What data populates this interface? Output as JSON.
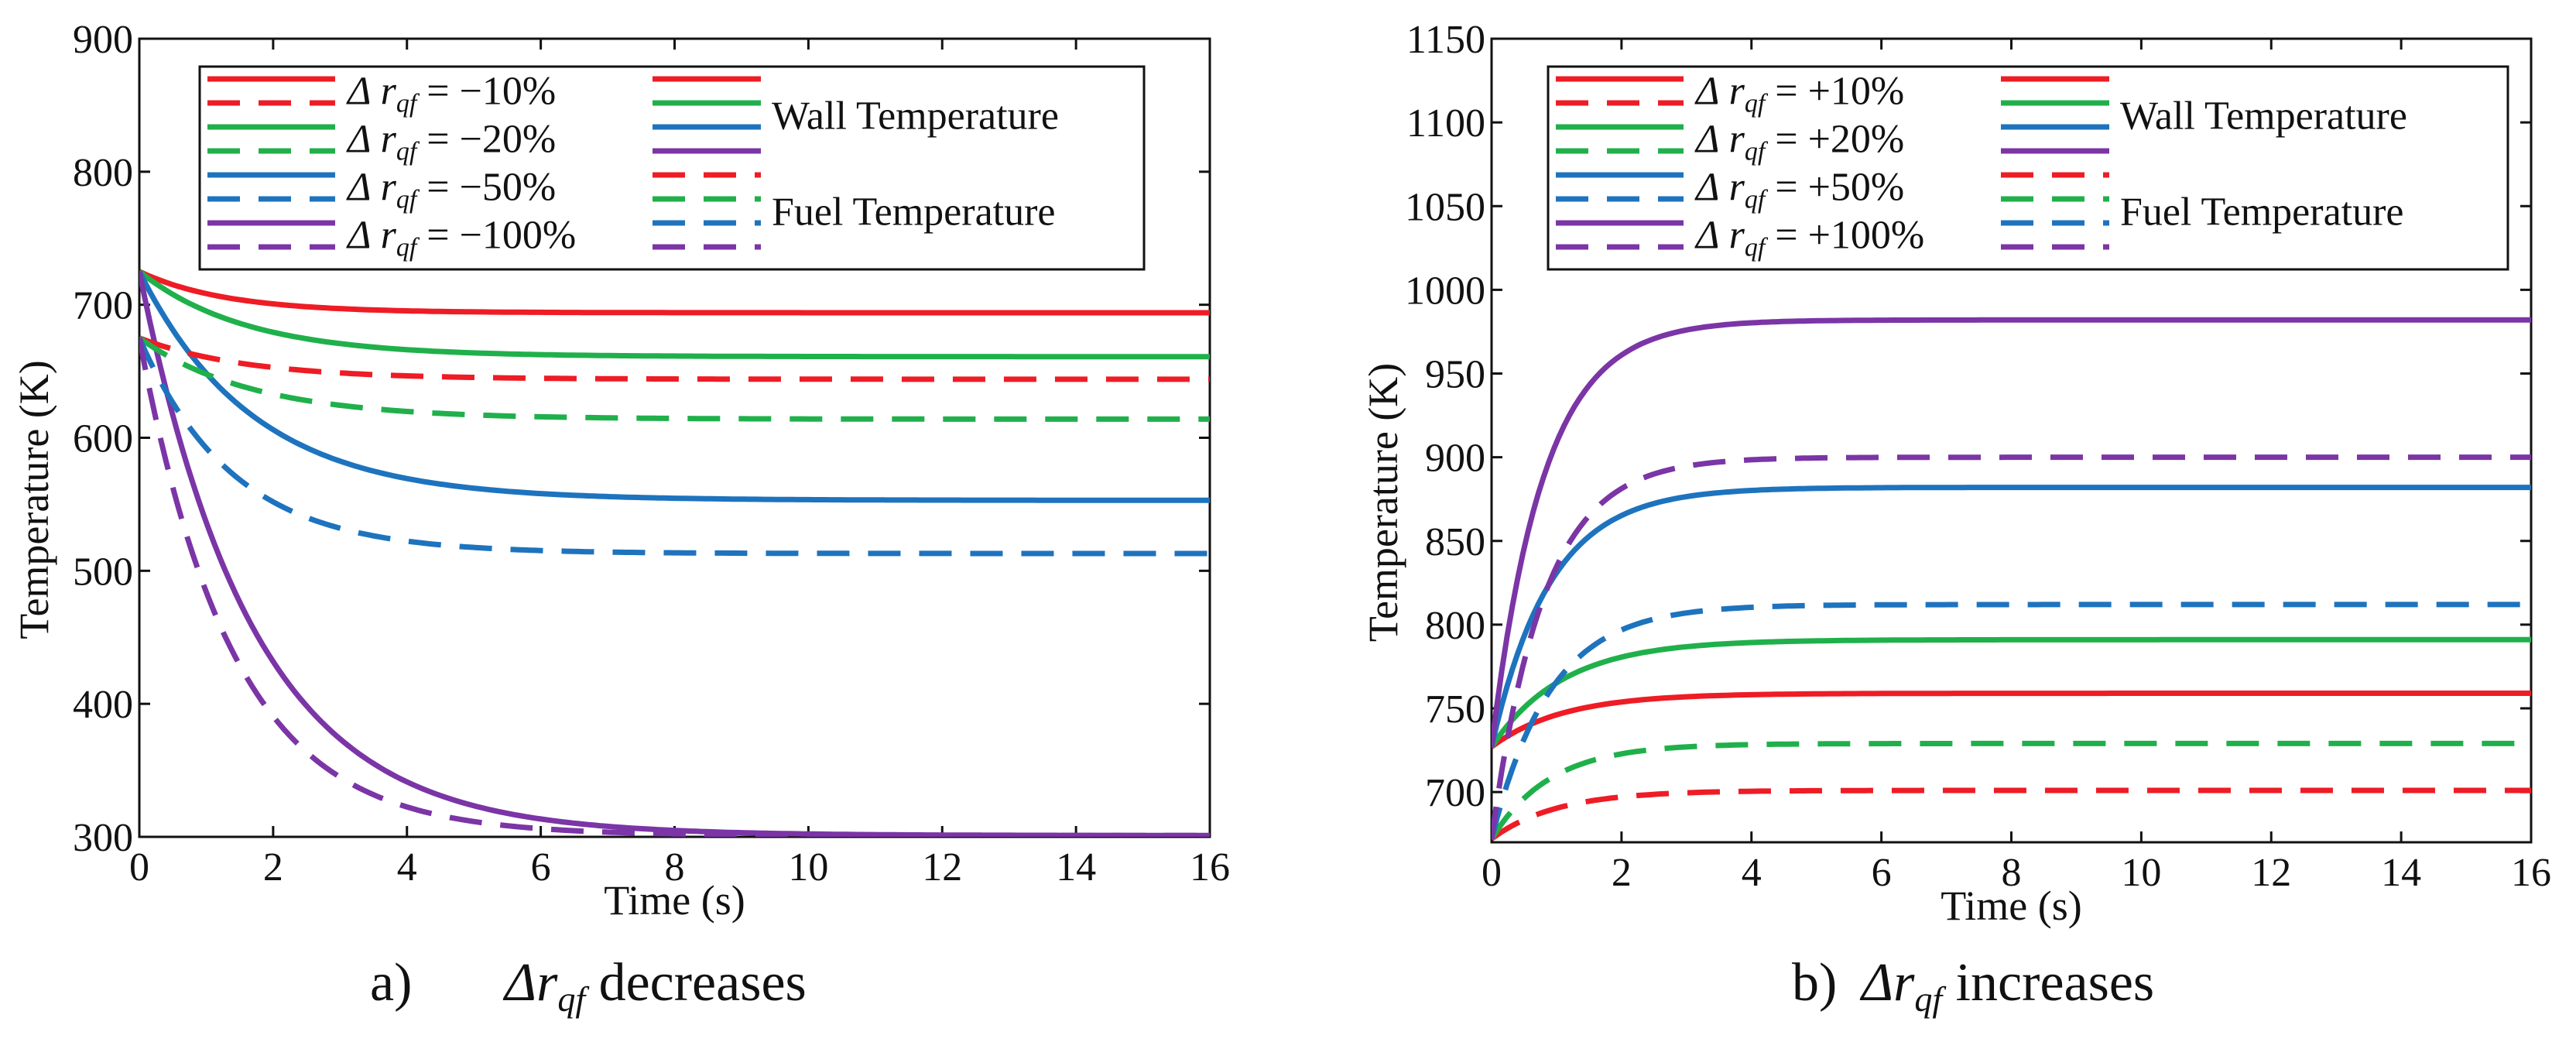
{
  "colors": {
    "red": "#ee1c25",
    "green": "#20b04b",
    "blue": "#1e73be",
    "purple": "#7b35a6"
  },
  "chart_data": [
    {
      "type": "line",
      "caption_letter": "a)",
      "caption_text": "decreases",
      "xlabel": "Time (s)",
      "ylabel": "Temperature (K)",
      "xlim": [
        0,
        16
      ],
      "ylim": [
        300,
        900
      ],
      "xticks": [
        "0",
        "2",
        "4",
        "6",
        "8",
        "10",
        "12",
        "14",
        "16"
      ],
      "yticks": [
        "300",
        "400",
        "500",
        "600",
        "700",
        "800",
        "900"
      ],
      "legend_entries": [
        "−10%",
        "−20%",
        "−50%",
        "−100%"
      ],
      "legend_group_labels": [
        "Wall Temperature",
        "Fuel Temperature"
      ],
      "series": [
        {
          "color": "red",
          "style": "solid",
          "start": 725,
          "end": 694,
          "tau": 1.3
        },
        {
          "color": "green",
          "style": "solid",
          "start": 725,
          "end": 661,
          "tau": 1.6
        },
        {
          "color": "blue",
          "style": "solid",
          "start": 725,
          "end": 553,
          "tau": 1.7
        },
        {
          "color": "purple",
          "style": "solid",
          "start": 725,
          "end": 301,
          "tau": 1.7
        },
        {
          "color": "red",
          "style": "dashed",
          "start": 675,
          "end": 644,
          "tau": 1.6
        },
        {
          "color": "green",
          "style": "dashed",
          "start": 675,
          "end": 614,
          "tau": 1.7
        },
        {
          "color": "blue",
          "style": "dashed",
          "start": 675,
          "end": 513,
          "tau": 1.4
        },
        {
          "color": "purple",
          "style": "dashed",
          "start": 675,
          "end": 301,
          "tau": 1.4
        }
      ]
    },
    {
      "type": "line",
      "caption_letter": "b)",
      "caption_text": "increases",
      "xlabel": "Time (s)",
      "ylabel": "Temperature (K)",
      "xlim": [
        0,
        16
      ],
      "ylim": [
        670,
        1150
      ],
      "xticks": [
        "0",
        "2",
        "4",
        "6",
        "8",
        "10",
        "12",
        "14",
        "16"
      ],
      "yticks": [
        "700",
        "750",
        "800",
        "850",
        "900",
        "950",
        "1000",
        "1050",
        "1100",
        "1150"
      ],
      "legend_entries": [
        "+10%",
        "+20%",
        "+50%",
        "+100%"
      ],
      "legend_group_labels": [
        "Wall Temperature",
        "Fuel Temperature"
      ],
      "series": [
        {
          "color": "red",
          "style": "solid",
          "start": 727,
          "end": 759,
          "tau": 1.1
        },
        {
          "color": "green",
          "style": "solid",
          "start": 727,
          "end": 791,
          "tau": 1.1
        },
        {
          "color": "blue",
          "style": "solid",
          "start": 727,
          "end": 882,
          "tau": 0.9
        },
        {
          "color": "purple",
          "style": "solid",
          "start": 727,
          "end": 982,
          "tau": 0.8
        },
        {
          "color": "red",
          "style": "dashed",
          "start": 672,
          "end": 701,
          "tau": 1.0
        },
        {
          "color": "green",
          "style": "dashed",
          "start": 672,
          "end": 729,
          "tau": 0.9
        },
        {
          "color": "blue",
          "style": "dashed",
          "start": 672,
          "end": 812,
          "tau": 0.9
        },
        {
          "color": "purple",
          "style": "dashed",
          "start": 672,
          "end": 900,
          "tau": 0.8
        }
      ]
    }
  ],
  "legend_prefix_symbol": "Δ",
  "legend_prefix_var": "r",
  "legend_prefix_sub": "qf",
  "legend_eq": "="
}
